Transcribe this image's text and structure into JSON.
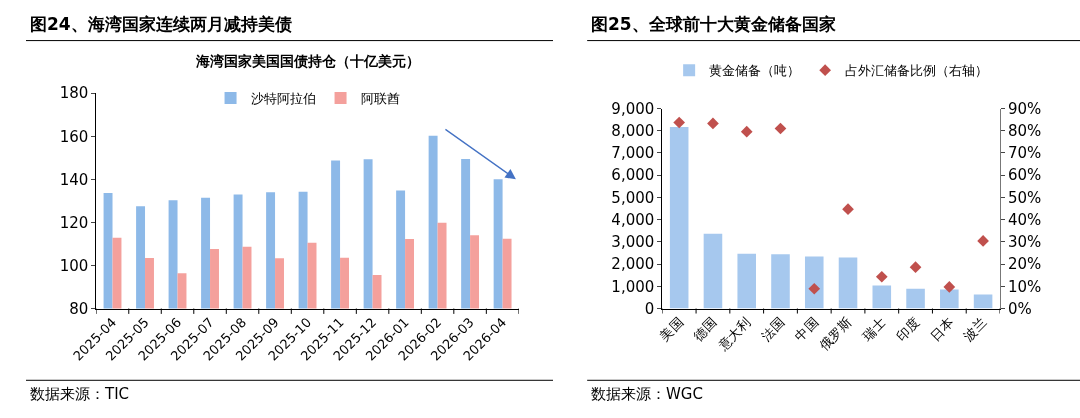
{
  "chart_data": [
    {
      "type": "bar",
      "title": "图24、海湾国家连续两月减持美债",
      "subtitle": "海湾国家美国国债持仓（十亿美元）",
      "categories": [
        "2025-04",
        "2025-05",
        "2025-06",
        "2025-07",
        "2025-08",
        "2025-09",
        "2025-10",
        "2025-11",
        "2025-12",
        "2026-01",
        "2026-02",
        "2026-03",
        "2026-04"
      ],
      "series": [
        {
          "name": "沙特阿拉伯",
          "color": "#8db9e8",
          "values": [
            133.7,
            127.5,
            130.3,
            131.4,
            132.9,
            134.0,
            134.2,
            148.7,
            149.3,
            134.8,
            160.2,
            149.4,
            140.0
          ]
        },
        {
          "name": "阿联酋",
          "color": "#f4a09c",
          "values": [
            112.9,
            103.5,
            96.4,
            107.6,
            108.7,
            103.3,
            110.6,
            103.6,
            95.6,
            112.3,
            119.8,
            114.0,
            112.4
          ]
        }
      ],
      "ylim": [
        80,
        180
      ],
      "yticks": [
        80,
        100,
        120,
        140,
        160,
        180
      ],
      "legend": "top",
      "annotations": [
        "数据来源：TIC"
      ]
    },
    {
      "type": "bar",
      "title": "图25、全球前十大黄金储备国家",
      "categories": [
        "美国",
        "德国",
        "意大利",
        "法国",
        "中国",
        "俄罗斯",
        "瑞士",
        "印度",
        "日本",
        "波兰"
      ],
      "series": [
        {
          "name": "黄金储备（吨）",
          "color": "#a6c8ee",
          "values": [
            8170,
            3370,
            2470,
            2440,
            2340,
            2300,
            1040,
            890,
            860,
            630
          ]
        },
        {
          "name": "占外汇储备比例（右轴）",
          "type": "scatter",
          "axis": "y2",
          "marker": "diamond",
          "color": "#c0504d",
          "values": [
            83.7,
            83.3,
            79.6,
            81.0,
            8.9,
            44.7,
            14.3,
            18.6,
            9.7,
            30.4
          ]
        }
      ],
      "ylim": [
        0,
        9000
      ],
      "yticks": [
        {
          "value": 0,
          "label": "0"
        },
        {
          "value": 1000,
          "label": "1,000"
        },
        {
          "value": 2000,
          "label": "2,000"
        },
        {
          "value": 3000,
          "label": "3,000"
        },
        {
          "value": 4000,
          "label": "4,000"
        },
        {
          "value": 5000,
          "label": "5,000"
        },
        {
          "value": 6000,
          "label": "6,000"
        },
        {
          "value": 7000,
          "label": "7,000"
        },
        {
          "value": 8000,
          "label": "8,000"
        },
        {
          "value": 9000,
          "label": "9,000"
        }
      ],
      "y2lim": [
        0,
        90
      ],
      "y2ticks": [
        {
          "value": 0,
          "label": "0%"
        },
        {
          "value": 10,
          "label": "10%"
        },
        {
          "value": 20,
          "label": "20%"
        },
        {
          "value": 30,
          "label": "30%"
        },
        {
          "value": 40,
          "label": "40%"
        },
        {
          "value": 50,
          "label": "50%"
        },
        {
          "value": 60,
          "label": "60%"
        },
        {
          "value": 70,
          "label": "70%"
        },
        {
          "value": 80,
          "label": "80%"
        },
        {
          "value": 90,
          "label": "90%"
        }
      ],
      "legend": "top",
      "annotations": [
        "数据来源：WGC"
      ]
    }
  ]
}
